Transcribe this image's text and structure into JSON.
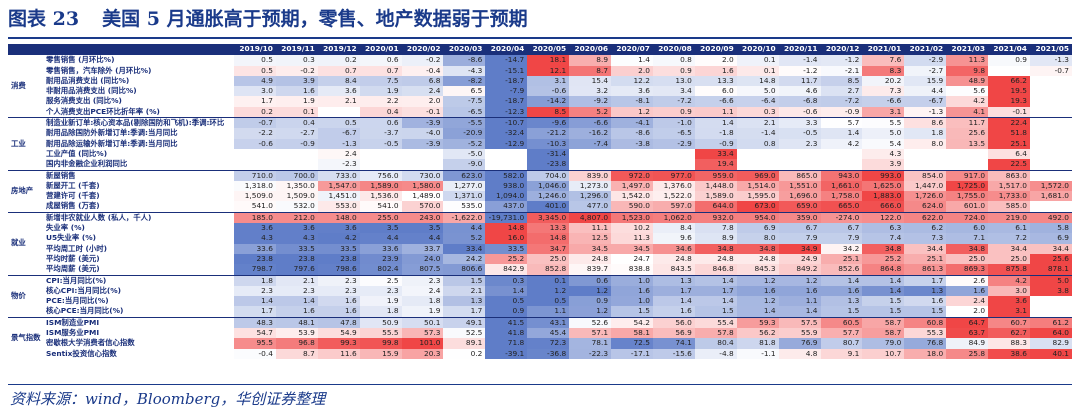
{
  "title": {
    "label": "图表 23",
    "text": "美国 5 月通胀高于预期，零售、地产数据弱于预期"
  },
  "source": "资料来源：wind，Bloomberg，华创证券整理",
  "chart_data": {
    "type": "table",
    "columns": [
      "2019/10",
      "2019/11",
      "2019/12",
      "2020/01",
      "2020/02",
      "2020/03",
      "2020/04",
      "2020/05",
      "2020/06",
      "2020/07",
      "2020/08",
      "2020/09",
      "2020/10",
      "2020/11",
      "2020/12",
      "2021/01",
      "2021/02",
      "2021/03",
      "2021/04",
      "2021/05"
    ],
    "groups": [
      {
        "name": "消费",
        "rows": [
          {
            "label": "零售销售 (月环比%)",
            "values": [
              "0.5",
              "0.3",
              "0.2",
              "0.6",
              "-0.2",
              "-8.6",
              "-14.7",
              "18.1",
              "8.9",
              "1.4",
              "0.8",
              "2.0",
              "0.1",
              "-1.4",
              "-1.2",
              "7.6",
              "-2.9",
              "11.3",
              "0.9",
              "-1.3"
            ]
          },
          {
            "label": "零售销售，汽车除外 (月环比%)",
            "values": [
              "0.5",
              "-0.2",
              "0.7",
              "0.7",
              "-0.4",
              "-4.3",
              "-15.1",
              "12.1",
              "8.7",
              "2.0",
              "0.9",
              "1.6",
              "0.1",
              "-1.2",
              "-2.1",
              "8.3",
              "-2.7",
              "9.8",
              "",
              "-0.7"
            ]
          },
          {
            "label": "耐用品消费支出 (同比%)",
            "values": [
              "4.9",
              "3.9",
              "8.4",
              "7.5",
              "6.8",
              "-8.2",
              "-18.7",
              "3.1",
              "15.4",
              "12.2",
              "13.0",
              "13.3",
              "14.8",
              "11.7",
              "8.5",
              "20.2",
              "15.9",
              "48.9",
              "66.2",
              ""
            ]
          },
          {
            "label": "非耐用品消费支出 (同比%)",
            "values": [
              "3.0",
              "1.6",
              "3.6",
              "1.9",
              "2.4",
              "6.5",
              "-7.9",
              "-0.6",
              "3.2",
              "3.6",
              "3.4",
              "6.0",
              "5.0",
              "4.6",
              "2.7",
              "7.3",
              "4.4",
              "5.6",
              "19.5",
              ""
            ]
          },
          {
            "label": "服务消费支出 (同比%)",
            "values": [
              "1.7",
              "1.9",
              "2.1",
              "2.2",
              "2.0",
              "-7.5",
              "-18.7",
              "-14.2",
              "-9.2",
              "-8.1",
              "-7.2",
              "-6.6",
              "-6.4",
              "-6.8",
              "-7.2",
              "-6.6",
              "-6.7",
              "4.2",
              "19.3",
              ""
            ]
          },
          {
            "label": "个人消费支出PCE环比折年率 (%)",
            "values": [
              "0.2",
              "0.1",
              "",
              "0.4",
              "-0.1",
              "-6.5",
              "-12.3",
              "8.5",
              "5.2",
              "1.2",
              "0.9",
              "1.1",
              "0.3",
              "-0.6",
              "-0.9",
              "3.1",
              "-1.3",
              "4.1",
              "-0.1",
              ""
            ]
          }
        ]
      },
      {
        "name": "工业",
        "rows": [
          {
            "label": "制造业新订单:核心资本品(剔除国防和飞机):季调:环比",
            "values": [
              "-0.7",
              "0.4",
              "0.5",
              "0.6",
              "-3.9",
              "-5.5",
              "-10.7",
              "-9.6",
              "-6.6",
              "-4.1",
              "-1.0",
              "1.4",
              "2.1",
              "3.3",
              "5.7",
              "5.5",
              "8.6",
              "11.7",
              "22.4",
              ""
            ]
          },
          {
            "label": "耐用品除国防外新增订单:季调:当月同比",
            "values": [
              "-2.2",
              "-2.7",
              "-6.7",
              "-3.7",
              "-4.0",
              "-20.9",
              "-32.4",
              "-21.2",
              "-16.2",
              "-8.6",
              "-6.5",
              "-1.8",
              "-1.4",
              "-0.5",
              "1.4",
              "5.0",
              "1.8",
              "25.6",
              "51.8",
              ""
            ]
          },
          {
            "label": "耐用品除运输外新增订单:季调:当月同比",
            "values": [
              "-0.6",
              "-0.9",
              "-1.3",
              "-0.5",
              "-3.9",
              "-5.2",
              "-12.9",
              "-10.3",
              "-7.4",
              "-3.8",
              "-2.9",
              "-0.9",
              "0.8",
              "2.3",
              "4.2",
              "5.4",
              "8.0",
              "13.5",
              "25.1",
              ""
            ]
          },
          {
            "label": "工业产值 (同比%)",
            "values": [
              "",
              "",
              "2.4",
              "",
              "",
              "-5.0",
              "",
              "-31.4",
              "",
              "",
              "",
              "33.4",
              "",
              "",
              "",
              "4.3",
              "",
              "",
              "6.4",
              ""
            ]
          },
          {
            "label": "国内非金融企业利润同比",
            "values": [
              "",
              "",
              "-2.3",
              "",
              "",
              "-9.0",
              "",
              "-23.8",
              "",
              "",
              "",
              "19.4",
              "",
              "",
              "",
              "3.9",
              "",
              "",
              "22.5",
              ""
            ]
          }
        ]
      },
      {
        "name": "房地产",
        "rows": [
          {
            "label": "新屋销售",
            "values": [
              "710.0",
              "700.0",
              "733.0",
              "756.0",
              "730.0",
              "623.0",
              "582.0",
              "704.0",
              "839.0",
              "972.0",
              "977.0",
              "959.0",
              "969.0",
              "865.0",
              "943.0",
              "993.0",
              "854.0",
              "917.0",
              "863.0",
              ""
            ]
          },
          {
            "label": "新屋开工 (千套)",
            "values": [
              "1,318.0",
              "1,350.0",
              "1,547.0",
              "1,589.0",
              "1,580.0",
              "1,277.0",
              "938.0",
              "1,046.0",
              "1,273.0",
              "1,497.0",
              "1,376.0",
              "1,448.0",
              "1,514.0",
              "1,551.0",
              "1,661.0",
              "1,625.0",
              "1,447.0",
              "1,725.0",
              "1,517.0",
              "1,572.0"
            ]
          },
          {
            "label": "营建许可 (千套)",
            "values": [
              "1,509.0",
              "1,509.0",
              "1,451.0",
              "1,536.0",
              "1,489.0",
              "1,371.0",
              "1,094.0",
              "1,246.0",
              "1,296.0",
              "1,542.0",
              "1,522.0",
              "1,589.0",
              "1,595.0",
              "1,696.0",
              "1,758.0",
              "1,883.0",
              "1,726.0",
              "1,755.0",
              "1,733.0",
              "1,681.0"
            ]
          },
          {
            "label": "成屋销售 (万套)",
            "values": [
              "541.0",
              "532.0",
              "553.0",
              "541.0",
              "570.0",
              "535.0",
              "437.0",
              "401.0",
              "477.0",
              "590.0",
              "597.0",
              "644.0",
              "673.0",
              "659.0",
              "665.0",
              "666.0",
              "624.0",
              "601.0",
              "585.0",
              ""
            ]
          }
        ]
      },
      {
        "name": "就业",
        "rows": [
          {
            "label": "新增非农就业人数 (私人，千人)",
            "values": [
              "185.0",
              "212.0",
              "148.0",
              "255.0",
              "243.0",
              "-1,622.0",
              "-19,731.0",
              "3,345.0",
              "4,807.0",
              "1,523.0",
              "1,062.0",
              "932.0",
              "954.0",
              "359.0",
              "-274.0",
              "122.0",
              "622.0",
              "724.0",
              "219.0",
              "492.0"
            ]
          },
          {
            "label": "失业率 (%)",
            "values": [
              "3.6",
              "3.6",
              "3.6",
              "3.5",
              "3.5",
              "4.4",
              "14.8",
              "13.3",
              "11.1",
              "10.2",
              "8.4",
              "7.8",
              "6.9",
              "6.7",
              "6.7",
              "6.3",
              "6.2",
              "6.0",
              "6.1",
              "5.8"
            ]
          },
          {
            "label": "U5失业率 (%)",
            "values": [
              "4.3",
              "4.3",
              "4.2",
              "4.4",
              "4.4",
              "5.2",
              "16.0",
              "14.8",
              "12.5",
              "11.3",
              "9.6",
              "8.9",
              "8.0",
              "7.9",
              "7.9",
              "7.4",
              "7.3",
              "7.1",
              "7.2",
              "6.9"
            ]
          },
          {
            "label": "平均周工时 (小时)",
            "values": [
              "33.6",
              "33.5",
              "33.5",
              "33.6",
              "33.7",
              "33.4",
              "33.5",
              "34.7",
              "34.5",
              "34.5",
              "34.6",
              "34.8",
              "34.8",
              "34.9",
              "34.2",
              "34.8",
              "34.4",
              "34.8",
              "34.4",
              "34.4"
            ]
          },
          {
            "label": "平均时薪 (美元)",
            "values": [
              "23.8",
              "23.8",
              "23.8",
              "23.9",
              "24.0",
              "24.2",
              "25.2",
              "25.0",
              "24.8",
              "24.7",
              "24.8",
              "24.8",
              "24.8",
              "24.9",
              "25.1",
              "25.2",
              "25.1",
              "25.0",
              "25.0",
              "25.6"
            ]
          },
          {
            "label": "平均周薪 (美元)",
            "values": [
              "798.7",
              "797.6",
              "798.6",
              "802.4",
              "807.5",
              "806.6",
              "842.9",
              "852.8",
              "839.7",
              "838.8",
              "843.5",
              "846.8",
              "845.3",
              "849.2",
              "852.6",
              "864.8",
              "861.3",
              "869.3",
              "875.8",
              "878.1"
            ]
          }
        ]
      },
      {
        "name": "物价",
        "rows": [
          {
            "label": "CPI:当月同比(%)",
            "values": [
              "1.8",
              "2.1",
              "2.3",
              "2.5",
              "2.3",
              "1.5",
              "0.3",
              "0.1",
              "0.6",
              "1.0",
              "1.3",
              "1.4",
              "1.2",
              "1.2",
              "1.4",
              "1.4",
              "1.7",
              "2.6",
              "4.2",
              "5.0"
            ]
          },
          {
            "label": "核心CPI:当月同比(%)",
            "values": [
              "2.3",
              "2.3",
              "2.3",
              "2.3",
              "2.4",
              "2.1",
              "1.4",
              "1.2",
              "1.2",
              "1.6",
              "1.7",
              "1.7",
              "1.6",
              "1.6",
              "1.6",
              "1.4",
              "1.3",
              "1.6",
              "3.0",
              "3.8"
            ]
          },
          {
            "label": "PCE:当月同比(%)",
            "values": [
              "1.4",
              "1.4",
              "1.6",
              "1.9",
              "1.8",
              "1.3",
              "0.5",
              "0.5",
              "0.9",
              "1.0",
              "1.4",
              "1.4",
              "1.2",
              "1.1",
              "1.3",
              "1.5",
              "1.6",
              "2.4",
              "3.6",
              ""
            ]
          },
          {
            "label": "核心PCE:当月同比(%)",
            "values": [
              "1.7",
              "1.6",
              "1.6",
              "1.8",
              "1.9",
              "1.7",
              "0.9",
              "1.1",
              "1.2",
              "1.5",
              "1.6",
              "1.5",
              "1.4",
              "1.4",
              "1.5",
              "1.5",
              "1.5",
              "2.0",
              "3.1",
              ""
            ]
          }
        ]
      },
      {
        "name": "景气指数",
        "rows": [
          {
            "label": "ISM制造业PMI",
            "values": [
              "48.3",
              "48.1",
              "47.8",
              "50.9",
              "50.1",
              "49.1",
              "41.5",
              "43.1",
              "52.6",
              "54.2",
              "56.0",
              "55.4",
              "59.3",
              "57.5",
              "60.5",
              "58.7",
              "60.8",
              "64.7",
              "60.7",
              "61.2"
            ]
          },
          {
            "label": "ISM服务业PMI",
            "values": [
              "54.7",
              "53.9",
              "54.9",
              "55.5",
              "57.3",
              "52.5",
              "41.8",
              "45.4",
              "57.1",
              "58.1",
              "56.9",
              "57.8",
              "56.2",
              "55.9",
              "57.7",
              "58.7",
              "55.3",
              "63.7",
              "62.7",
              "64.0"
            ]
          },
          {
            "label": "密歇根大学消费者信心指数",
            "values": [
              "95.5",
              "96.8",
              "99.3",
              "99.8",
              "101.0",
              "89.1",
              "71.8",
              "72.3",
              "78.1",
              "72.5",
              "74.1",
              "80.4",
              "81.8",
              "76.9",
              "80.7",
              "79.0",
              "76.8",
              "84.9",
              "88.3",
              "82.9"
            ]
          },
          {
            "label": "Sentix投资信心指数",
            "values": [
              "-0.4",
              "8.7",
              "11.6",
              "15.9",
              "20.3",
              "0.2",
              "-39.1",
              "-36.8",
              "-22.3",
              "-17.1",
              "-15.6",
              "-4.8",
              "-1.1",
              "4.8",
              "9.1",
              "10.7",
              "18.0",
              "25.8",
              "38.6",
              "40.1"
            ]
          }
        ]
      }
    ]
  }
}
